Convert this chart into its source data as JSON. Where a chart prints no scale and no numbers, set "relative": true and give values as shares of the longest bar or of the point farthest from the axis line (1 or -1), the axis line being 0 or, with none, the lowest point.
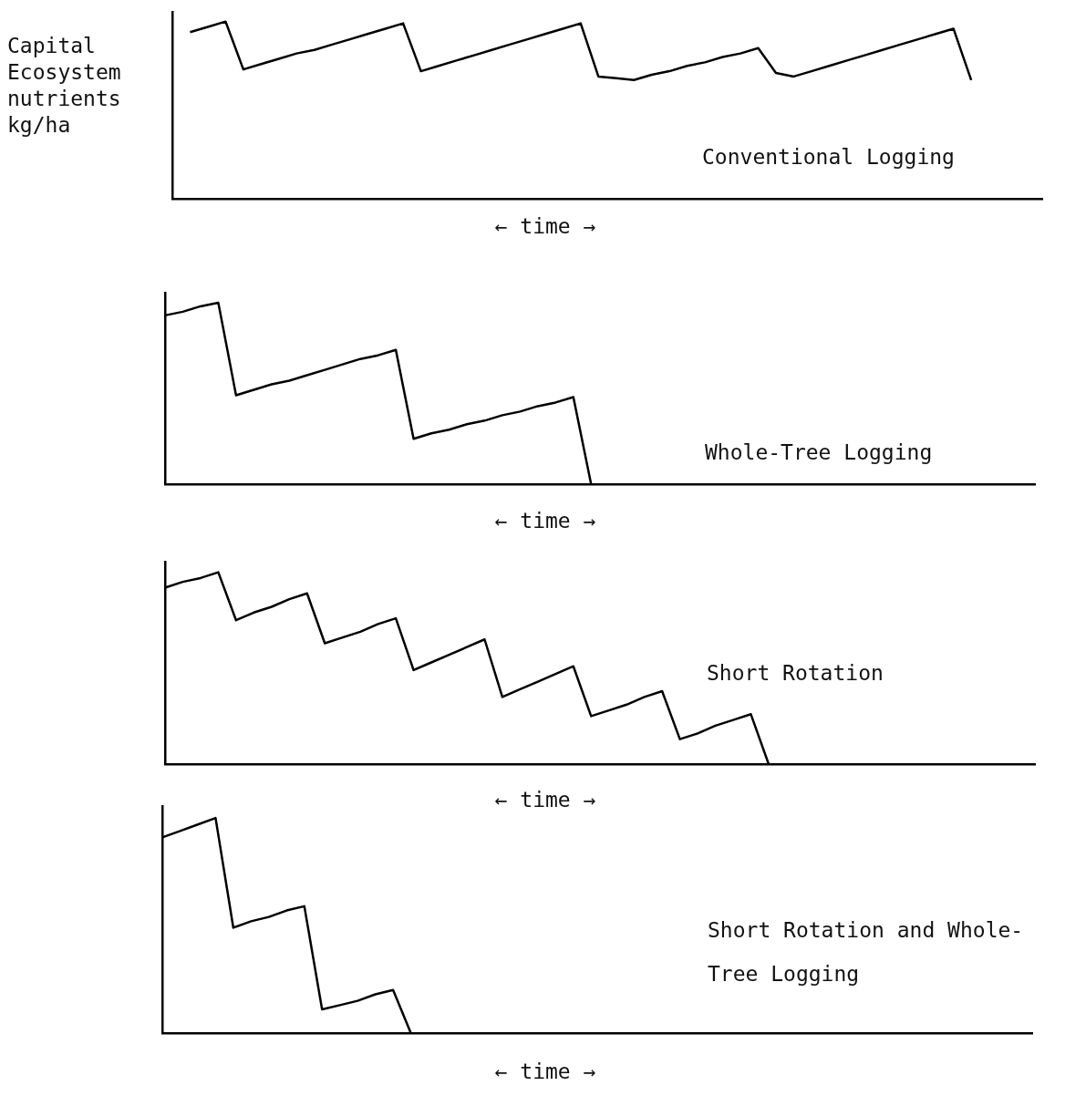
{
  "chart_data": [
    {
      "type": "line",
      "relative": true,
      "tick_labels": false,
      "ylabel": "Capital Ecosystem nutrients kg/ha",
      "xlabel": "← time →",
      "annotations": [
        "Conventional Logging"
      ],
      "color": "#000000",
      "categories": [
        null,
        null,
        null,
        null,
        null,
        null,
        null,
        null,
        null,
        null,
        null,
        null,
        null,
        null,
        null,
        null,
        null,
        null,
        null,
        null,
        null,
        null,
        null,
        null,
        null,
        null,
        null,
        null,
        null,
        null,
        null,
        null,
        null,
        null,
        null,
        null,
        null,
        null,
        null,
        null,
        null,
        null,
        null,
        null,
        null,
        null,
        null,
        null,
        null,
        null
      ],
      "values": [
        null,
        0.94,
        0.97,
        1.0,
        0.73,
        0.76,
        0.79,
        0.82,
        0.84,
        0.87,
        0.9,
        0.93,
        0.96,
        0.99,
        0.72,
        0.75,
        0.78,
        0.81,
        0.84,
        0.87,
        0.9,
        0.93,
        0.96,
        0.99,
        0.69,
        0.68,
        0.67,
        0.7,
        0.72,
        0.75,
        0.77,
        0.8,
        0.82,
        0.85,
        0.71,
        0.69,
        0.72,
        0.75,
        0.78,
        0.81,
        0.84,
        0.87,
        0.9,
        0.93,
        0.96,
        0.67,
        null,
        null,
        null,
        null
      ]
    },
    {
      "type": "line",
      "relative": true,
      "tick_labels": false,
      "xlabel": "← time →",
      "annotations": [
        "Whole-Tree Logging"
      ],
      "color": "#000000",
      "categories": [
        null,
        null,
        null,
        null,
        null,
        null,
        null,
        null,
        null,
        null,
        null,
        null,
        null,
        null,
        null,
        null,
        null,
        null,
        null,
        null,
        null,
        null,
        null,
        null,
        null,
        null,
        null,
        null,
        null,
        null,
        null,
        null,
        null,
        null,
        null,
        null,
        null,
        null,
        null,
        null,
        null,
        null,
        null,
        null,
        null,
        null,
        null,
        null,
        null,
        null
      ],
      "values": [
        0.93,
        0.95,
        0.98,
        1.0,
        0.49,
        0.52,
        0.55,
        0.57,
        0.6,
        0.63,
        0.66,
        0.69,
        0.71,
        0.74,
        0.25,
        0.28,
        0.3,
        0.33,
        0.35,
        0.38,
        0.4,
        0.43,
        0.45,
        0.48,
        0,
        null,
        null,
        null,
        null,
        null,
        null,
        null,
        null,
        null,
        null,
        null,
        null,
        null,
        null,
        null,
        null,
        null,
        null,
        null,
        null,
        null,
        null,
        null,
        null,
        null
      ]
    },
    {
      "type": "line",
      "relative": true,
      "tick_labels": false,
      "xlabel": "← time →",
      "annotations": [
        "Short Rotation"
      ],
      "color": "#000000",
      "categories": [
        null,
        null,
        null,
        null,
        null,
        null,
        null,
        null,
        null,
        null,
        null,
        null,
        null,
        null,
        null,
        null,
        null,
        null,
        null,
        null,
        null,
        null,
        null,
        null,
        null,
        null,
        null,
        null,
        null,
        null,
        null,
        null,
        null,
        null,
        null,
        null,
        null,
        null,
        null,
        null,
        null,
        null,
        null,
        null,
        null,
        null,
        null,
        null,
        null,
        null
      ],
      "values": [
        0.92,
        0.95,
        0.97,
        1.0,
        0.75,
        0.79,
        0.82,
        0.86,
        0.89,
        0.63,
        0.66,
        0.69,
        0.73,
        0.76,
        0.49,
        0.53,
        0.57,
        0.61,
        0.65,
        0.35,
        0.39,
        0.43,
        0.47,
        0.51,
        0.25,
        0.28,
        0.31,
        0.35,
        0.38,
        0.13,
        0.16,
        0.2,
        0.23,
        0.26,
        0,
        null,
        null,
        null,
        null,
        null,
        null,
        null,
        null,
        null,
        null,
        null,
        null,
        null,
        null,
        null
      ]
    },
    {
      "type": "line",
      "relative": true,
      "tick_labels": false,
      "xlabel": "← time →",
      "annotations": [
        "Short Rotation and Whole-Tree Logging"
      ],
      "color": "#000000",
      "categories": [
        null,
        null,
        null,
        null,
        null,
        null,
        null,
        null,
        null,
        null,
        null,
        null,
        null,
        null,
        null,
        null,
        null,
        null,
        null,
        null,
        null,
        null,
        null,
        null,
        null,
        null,
        null,
        null,
        null,
        null,
        null,
        null,
        null,
        null,
        null,
        null,
        null,
        null,
        null,
        null,
        null,
        null,
        null,
        null,
        null,
        null,
        null,
        null,
        null,
        null
      ],
      "values": [
        0.91,
        0.94,
        0.97,
        1.0,
        0.49,
        0.52,
        0.54,
        0.57,
        0.59,
        0.11,
        0.13,
        0.15,
        0.18,
        0.2,
        0,
        null,
        null,
        null,
        null,
        null,
        null,
        null,
        null,
        null,
        null,
        null,
        null,
        null,
        null,
        null,
        null,
        null,
        null,
        null,
        null,
        null,
        null,
        null,
        null,
        null,
        null,
        null,
        null,
        null,
        null,
        null,
        null,
        null,
        null,
        null
      ]
    }
  ]
}
